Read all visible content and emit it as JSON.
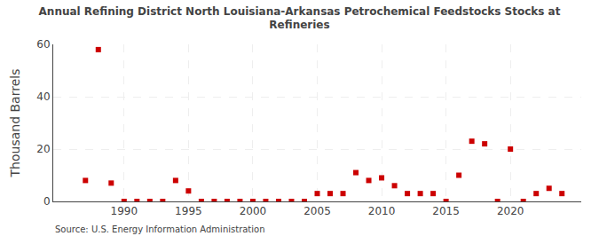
{
  "chart_data": {
    "type": "scatter",
    "title": "Annual Refining District North Louisiana-Arkansas Petrochemical Feedstocks Stocks at\nRefineries",
    "ylabel": "Thousand Barrels",
    "annotations": [
      "Source: U.S. Energy Information Administration"
    ],
    "x": [
      1987,
      1988,
      1989,
      1990,
      1991,
      1992,
      1993,
      1994,
      1995,
      1996,
      1997,
      1998,
      1999,
      2000,
      2001,
      2002,
      2003,
      2004,
      2005,
      2006,
      2007,
      2008,
      2009,
      2010,
      2011,
      2012,
      2013,
      2014,
      2015,
      2016,
      2017,
      2018,
      2019,
      2020,
      2021,
      2022,
      2023,
      2024
    ],
    "values": [
      8,
      58,
      7,
      0,
      0,
      0,
      0,
      8,
      4,
      0,
      0,
      0,
      0,
      0,
      0,
      0,
      0,
      0,
      3,
      3,
      3,
      11,
      8,
      9,
      6,
      3,
      3,
      3,
      0,
      10,
      23,
      22,
      0,
      20,
      0,
      3,
      5,
      3
    ],
    "color": "#cc0000",
    "marker": "square",
    "xlim": [
      1984.5,
      2025.5
    ],
    "ylim": [
      0,
      60
    ],
    "xticks": [
      1990,
      1995,
      2000,
      2005,
      2010,
      2015,
      2020
    ],
    "yticks": [
      0,
      20,
      40,
      60
    ],
    "grid": true
  }
}
